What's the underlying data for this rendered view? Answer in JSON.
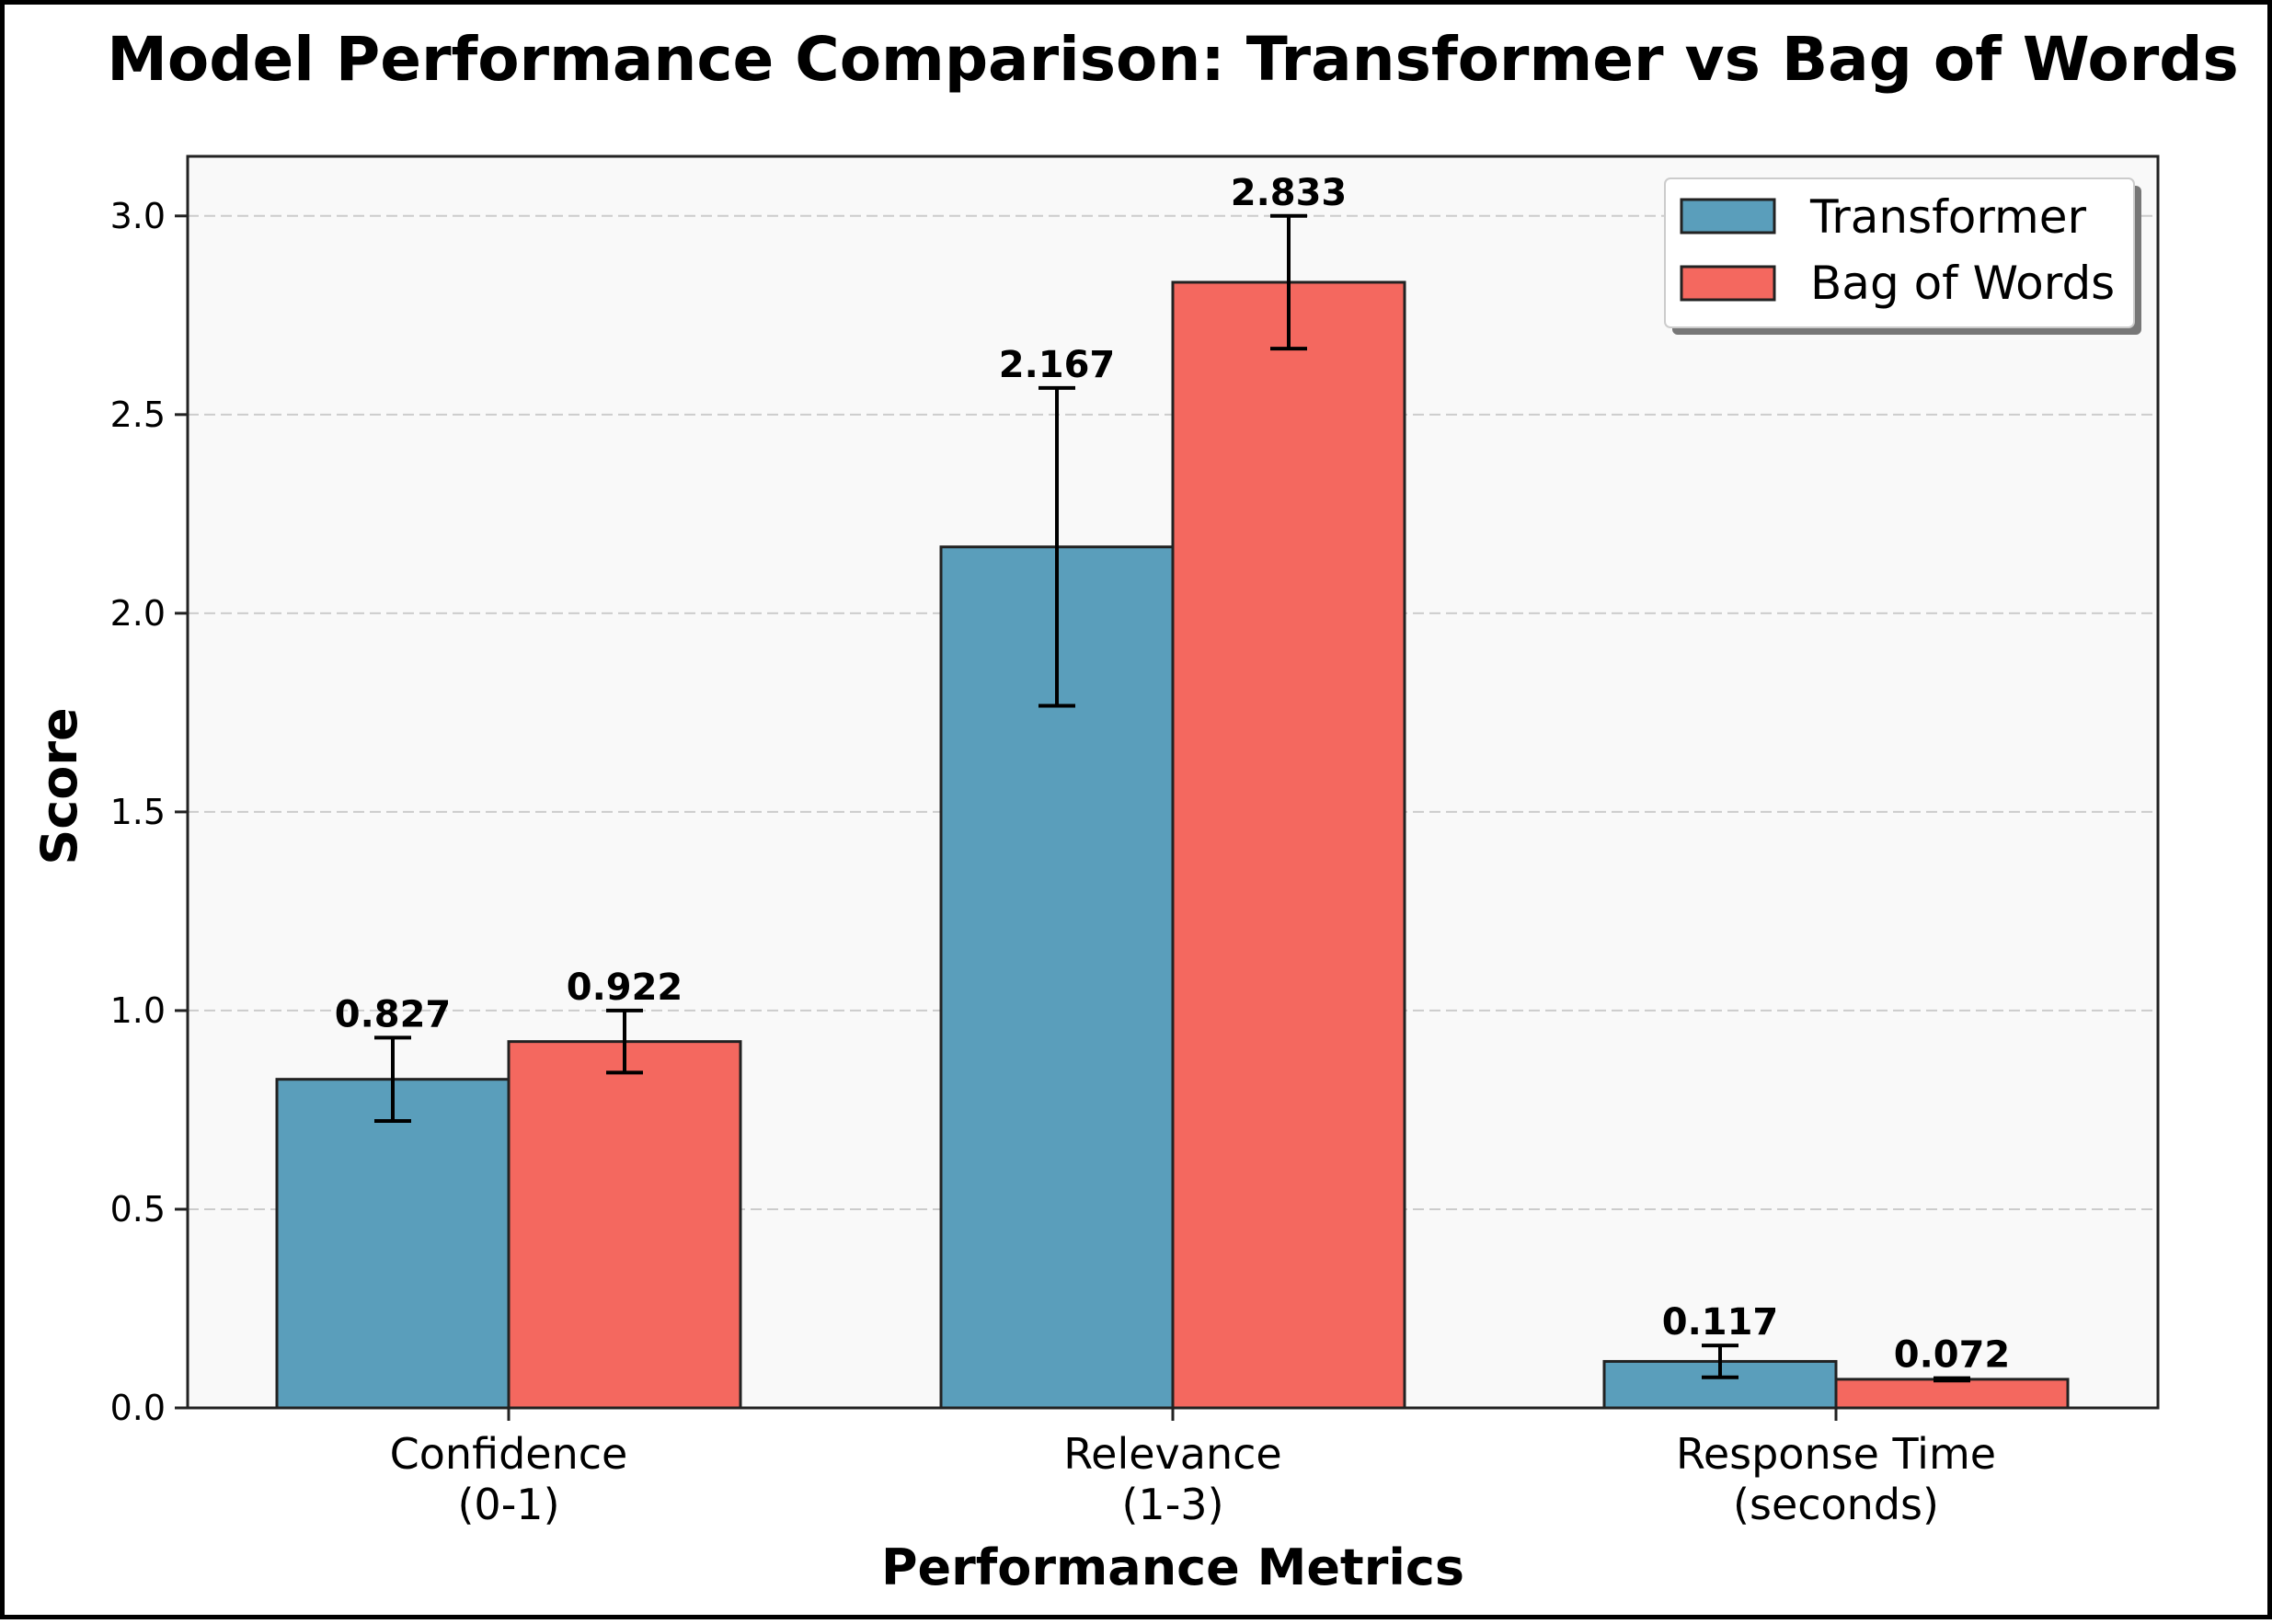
{
  "chart_data": {
    "type": "bar",
    "title": "Model Performance Comparison: Transformer vs Bag of Words",
    "xlabel": "Performance Metrics",
    "ylabel": "Score",
    "ylim": [
      0,
      3.15
    ],
    "yticks": [
      "0.0",
      "0.5",
      "1.0",
      "1.5",
      "2.0",
      "2.5",
      "3.0"
    ],
    "grid": "y-dashed",
    "legend_position": "top-right",
    "categories": [
      [
        "Confidence",
        "(0-1)"
      ],
      [
        "Relevance",
        "(1-3)"
      ],
      [
        "Response Time",
        "(seconds)"
      ]
    ],
    "series": [
      {
        "name": "Transformer",
        "color": "#5a9ebb",
        "values": [
          0.827,
          2.167,
          0.117
        ],
        "labels": [
          "0.827",
          "2.167",
          "0.117"
        ],
        "error": [
          0.105,
          0.4,
          0.04
        ]
      },
      {
        "name": "Bag of Words",
        "color": "#f4685f",
        "values": [
          0.922,
          2.833,
          0.072
        ],
        "labels": [
          "0.922",
          "2.833",
          "0.072"
        ],
        "error": [
          0.078,
          0.167,
          0.003
        ]
      }
    ],
    "plot_background": "#f9f9f9"
  }
}
